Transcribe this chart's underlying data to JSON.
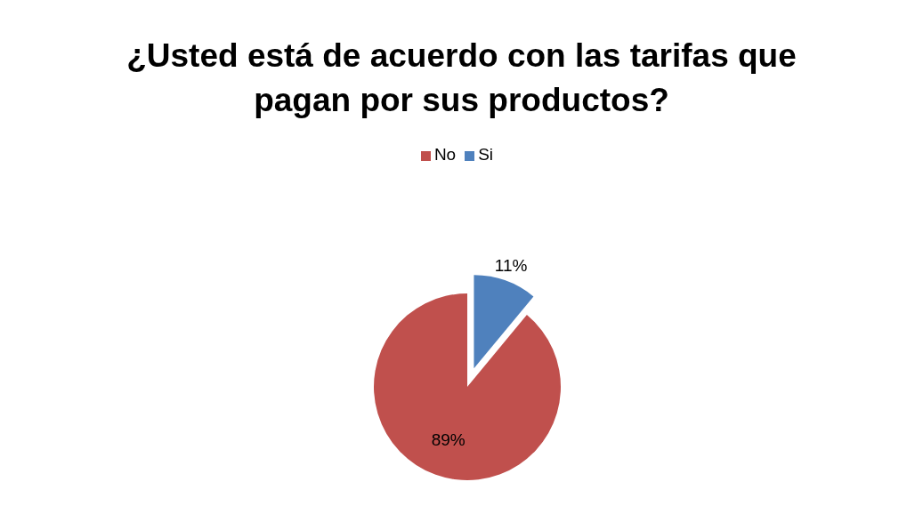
{
  "chart_data": {
    "type": "pie",
    "title": "¿Usted está de acuerdo con las tarifas que pagan por sus productos?",
    "categories": [
      "Si",
      "No"
    ],
    "values": [
      11,
      89
    ],
    "colors": [
      "#4f81bd",
      "#c0504d"
    ],
    "value_labels": [
      "11%",
      "89%"
    ],
    "legend": "top"
  }
}
